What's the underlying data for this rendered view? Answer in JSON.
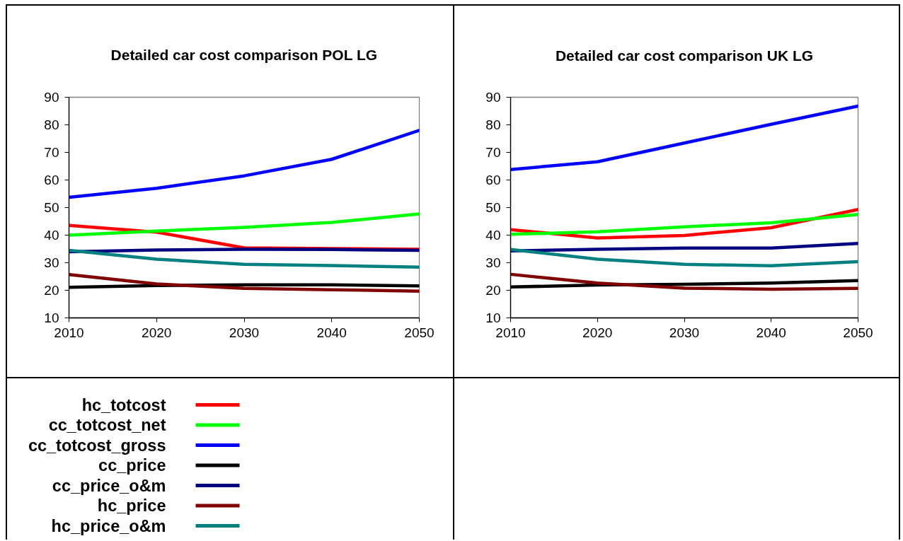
{
  "chart_data": [
    {
      "type": "line",
      "title": "Detailed car cost comparison POL LG",
      "x": [
        2010,
        2020,
        2030,
        2040,
        2050
      ],
      "xlim": [
        2010,
        2050
      ],
      "xticks": [
        2010,
        2020,
        2030,
        2040,
        2050
      ],
      "ylim": [
        10,
        90
      ],
      "yticks": [
        10,
        20,
        30,
        40,
        50,
        60,
        70,
        80,
        90
      ],
      "legend": "bottom",
      "series": [
        {
          "name": "hc_totcost",
          "color": "#ff0000",
          "values": [
            43.5,
            41.1,
            35.4,
            35.1,
            34.9
          ]
        },
        {
          "name": "cc_totcost_net",
          "color": "#00ff00",
          "values": [
            40.0,
            41.5,
            42.8,
            44.6,
            47.7
          ]
        },
        {
          "name": "cc_totcost_gross",
          "color": "#0000ff",
          "values": [
            53.7,
            57.0,
            61.5,
            67.5,
            78.0
          ]
        },
        {
          "name": "cc_price",
          "color": "#000000",
          "values": [
            21.1,
            21.7,
            22.0,
            22.0,
            21.6
          ]
        },
        {
          "name": "cc_price_o&m",
          "color": "#000080",
          "values": [
            34.0,
            34.6,
            34.9,
            34.8,
            34.5
          ]
        },
        {
          "name": "hc_price",
          "color": "#800000",
          "values": [
            25.7,
            22.3,
            20.7,
            20.2,
            19.7
          ]
        },
        {
          "name": "hc_price_o&m",
          "color": "#008080",
          "values": [
            34.5,
            31.3,
            29.4,
            29.0,
            28.4
          ]
        }
      ]
    },
    {
      "type": "line",
      "title": "Detailed car cost comparison UK LG",
      "x": [
        2010,
        2020,
        2030,
        2040,
        2050
      ],
      "xlim": [
        2010,
        2050
      ],
      "xticks": [
        2010,
        2020,
        2030,
        2040,
        2050
      ],
      "ylim": [
        10,
        90
      ],
      "yticks": [
        10,
        20,
        30,
        40,
        50,
        60,
        70,
        80,
        90
      ],
      "series": [
        {
          "color": "#ff0000",
          "values": [
            42.0,
            39.0,
            39.9,
            42.7,
            49.3
          ]
        },
        {
          "color": "#00ff00",
          "values": [
            40.3,
            41.2,
            43.0,
            44.5,
            47.5
          ]
        },
        {
          "color": "#0000ff",
          "values": [
            63.8,
            66.6,
            73.4,
            80.2,
            86.8
          ]
        },
        {
          "color": "#000000",
          "values": [
            21.2,
            21.9,
            22.2,
            22.6,
            23.5
          ]
        },
        {
          "color": "#000080",
          "values": [
            34.3,
            34.9,
            35.3,
            35.3,
            37.0
          ]
        },
        {
          "color": "#800000",
          "values": [
            25.8,
            22.6,
            20.8,
            20.4,
            20.7
          ]
        },
        {
          "color": "#008080",
          "values": [
            34.8,
            31.3,
            29.4,
            28.9,
            30.4
          ]
        }
      ]
    }
  ]
}
